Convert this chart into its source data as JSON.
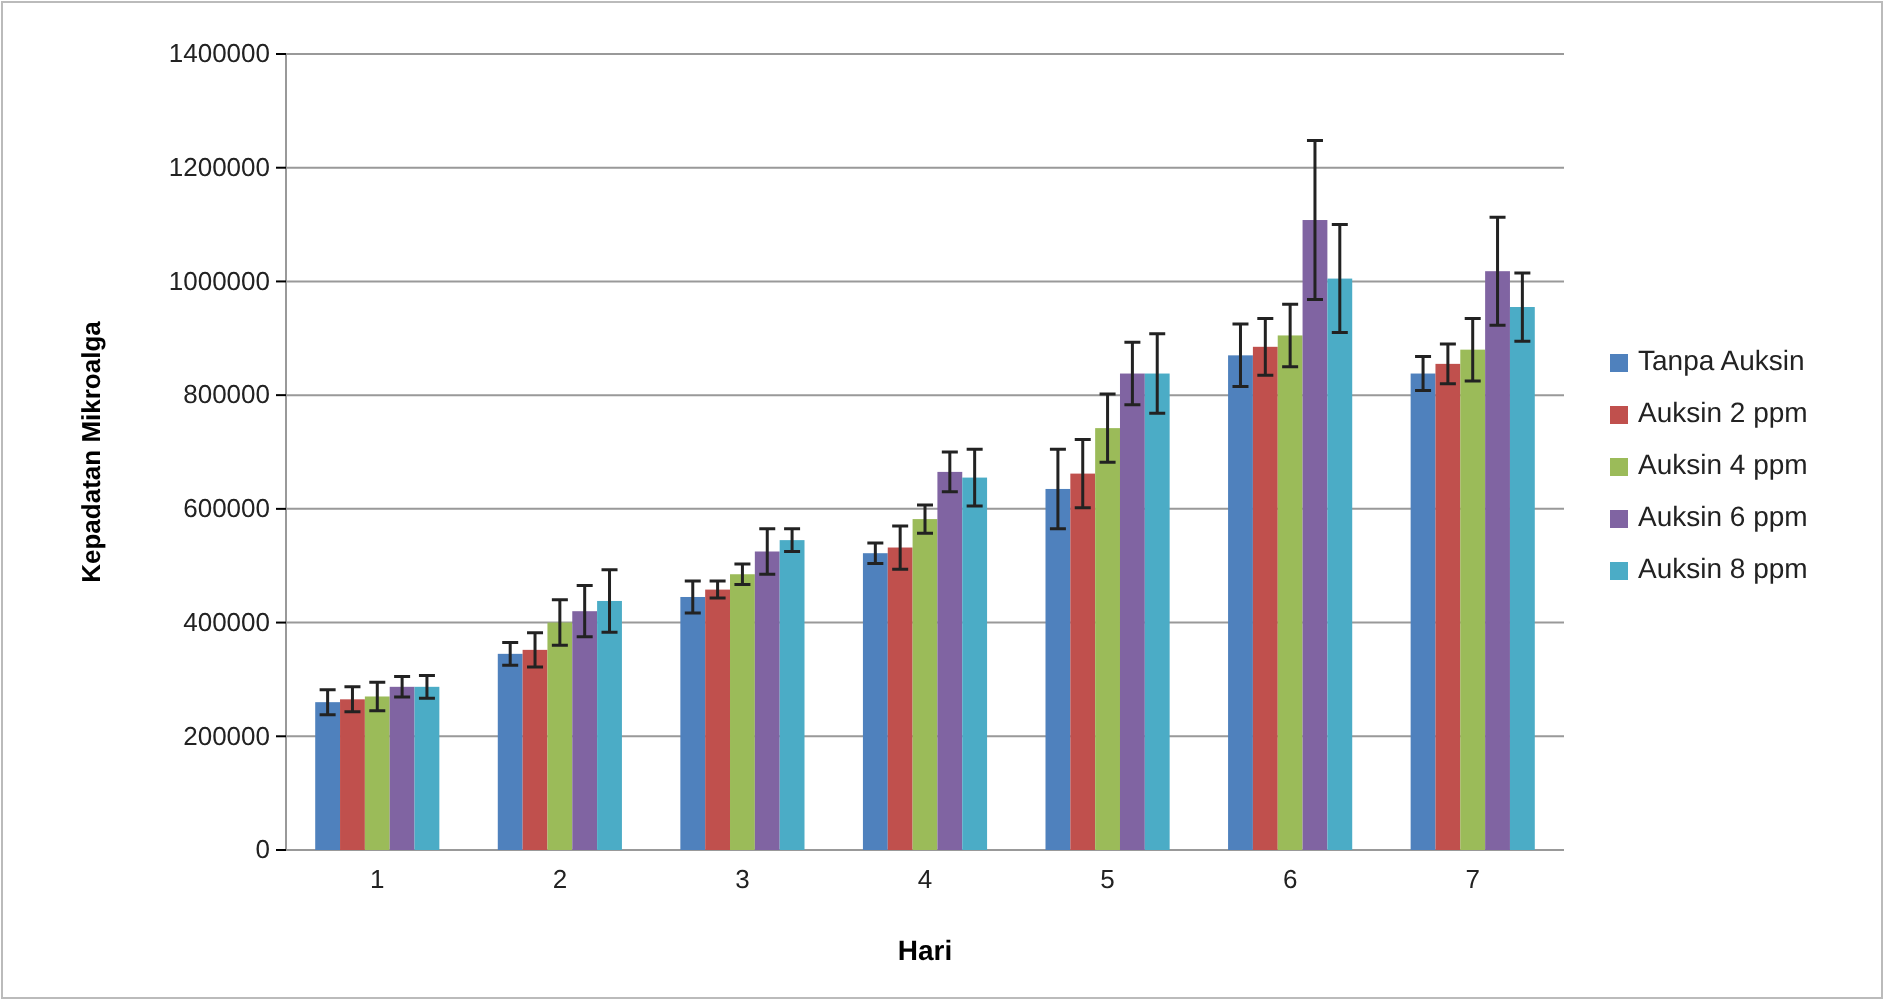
{
  "chart_data": {
    "type": "bar",
    "xlabel": "Hari",
    "ylabel": "Kepadatan Mikroalga",
    "categories": [
      "1",
      "2",
      "3",
      "4",
      "5",
      "6",
      "7"
    ],
    "series": [
      {
        "name": "Tanpa Auksin",
        "color": "#4f81bd",
        "values": [
          260000,
          345000,
          445000,
          522000,
          635000,
          870000,
          838000
        ],
        "errors": [
          22000,
          20000,
          28000,
          18000,
          70000,
          55000,
          30000
        ]
      },
      {
        "name": "Auksin 2 ppm",
        "color": "#c0504d",
        "values": [
          265000,
          352000,
          458000,
          532000,
          662000,
          885000,
          855000
        ],
        "errors": [
          22000,
          30000,
          15000,
          38000,
          60000,
          50000,
          35000
        ]
      },
      {
        "name": "Auksin 4 ppm",
        "color": "#9bbb59",
        "values": [
          270000,
          400000,
          485000,
          582000,
          742000,
          905000,
          880000
        ],
        "errors": [
          25000,
          40000,
          18000,
          25000,
          60000,
          55000,
          55000
        ]
      },
      {
        "name": "Auksin 6 ppm",
        "color": "#8064a2",
        "values": [
          287000,
          420000,
          525000,
          665000,
          838000,
          1108000,
          1018000
        ],
        "errors": [
          18000,
          45000,
          40000,
          35000,
          55000,
          140000,
          95000
        ]
      },
      {
        "name": "Auksin 8 ppm",
        "color": "#4bacc6",
        "values": [
          287000,
          438000,
          545000,
          655000,
          838000,
          1005000,
          955000
        ],
        "errors": [
          20000,
          55000,
          20000,
          50000,
          70000,
          95000,
          60000
        ]
      }
    ],
    "ylim": [
      0,
      1400000
    ],
    "yticks": [
      0,
      200000,
      400000,
      600000,
      800000,
      1000000,
      1200000,
      1400000
    ],
    "grid": "y",
    "legend": "right"
  }
}
